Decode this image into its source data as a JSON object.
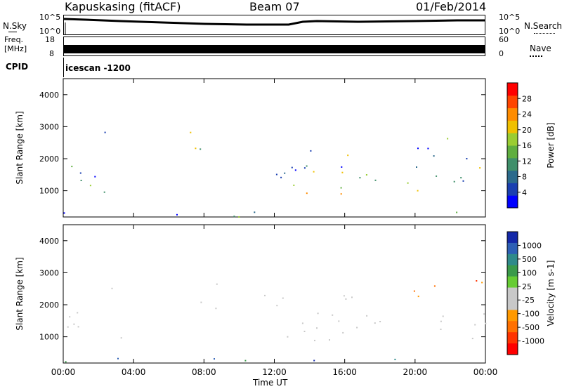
{
  "header": {
    "station": "Kapuskasing (fitACF)",
    "beam": "Beam 07",
    "date": "01/Feb/2014"
  },
  "top_panels": {
    "nsky_label": "N.Sky",
    "nsky_ticks": [
      "10^5",
      "10^0"
    ],
    "nsearch_label": "N.Search",
    "nsearch_ticks": [
      "10^5",
      "10^0"
    ],
    "freq_label_1": "Freq.",
    "freq_label_2": "[MHz]",
    "freq_ticks": [
      "18",
      "8"
    ],
    "nave_label": "Nave",
    "nave_ticks": [
      "60",
      "0"
    ],
    "cpid_label": "CPID",
    "cpid_value": "icescan -1200"
  },
  "chart_data": [
    {
      "type": "heatmap",
      "quantity": "power",
      "ylabel": "Slant Range [km]",
      "ylim": [
        180,
        4500
      ],
      "yticks": [
        "1000",
        "2000",
        "3000",
        "4000"
      ],
      "colorbar_label": "Power [dB]",
      "colorbar_ticks": [
        "4",
        "8",
        "12",
        "16",
        "20",
        "24",
        "28"
      ],
      "colorbar_colors": [
        "#0000ff",
        "#1a3fb0",
        "#2b6a8c",
        "#3f8f6a",
        "#5fae3f",
        "#9acd32",
        "#f0c000",
        "#ff8c00",
        "#ff4500",
        "#ff0000"
      ]
    },
    {
      "type": "heatmap",
      "quantity": "velocity",
      "ylabel": "Slant Range [km]",
      "ylim": [
        180,
        4500
      ],
      "yticks": [
        "1000",
        "2000",
        "3000",
        "4000"
      ],
      "colorbar_label": "Velocity [m s-1]",
      "colorbar_ticks": [
        "1000",
        "500",
        "100",
        "25",
        "-25",
        "-100",
        "-500",
        "-1000"
      ],
      "colorbar_colors": [
        "#1428a8",
        "#2d5fb5",
        "#2f8a8a",
        "#3a9a4a",
        "#66cc33",
        "#c8c8c8",
        "#c8c8c8",
        "#ff9900",
        "#ff7000",
        "#ff3300",
        "#ff0000"
      ]
    }
  ],
  "x_axis": {
    "ticks": [
      "00:00",
      "04:00",
      "08:00",
      "12:00",
      "16:00",
      "20:00",
      "00:00"
    ],
    "label": "Time UT"
  }
}
